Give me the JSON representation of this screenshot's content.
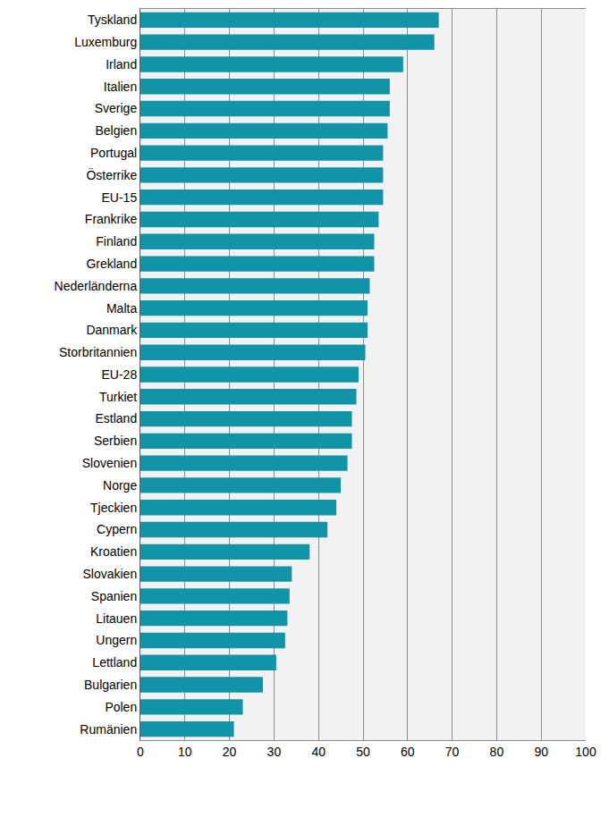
{
  "chart_data": {
    "type": "bar",
    "orientation": "horizontal",
    "categories": [
      "Tyskland",
      "Luxemburg",
      "Irland",
      "Italien",
      "Sverige",
      "Belgien",
      "Portugal",
      "Österrike",
      "EU-15",
      "Frankrike",
      "Finland",
      "Grekland",
      "Nederländerna",
      "Malta",
      "Danmark",
      "Storbritannien",
      "EU-28",
      "Turkiet",
      "Estland",
      "Serbien",
      "Slovenien",
      "Norge",
      "Tjeckien",
      "Cypern",
      "Kroatien",
      "Slovakien",
      "Spanien",
      "Litauen",
      "Ungern",
      "Lettland",
      "Bulgarien",
      "Polen",
      "Rumänien"
    ],
    "values": [
      67,
      66,
      59,
      56,
      56,
      55.5,
      54.5,
      54.5,
      54.5,
      53.5,
      52.5,
      52.5,
      51.5,
      51,
      51,
      50.5,
      49,
      48.5,
      47.5,
      47.5,
      46.5,
      45,
      44,
      42,
      38,
      34,
      33.5,
      33,
      32.5,
      30.5,
      27.5,
      23,
      21
    ],
    "color": "#1294a8",
    "xlim": [
      0,
      100
    ],
    "xticks": [
      0,
      10,
      20,
      30,
      40,
      50,
      60,
      70,
      80,
      90,
      100
    ],
    "grid": true
  }
}
